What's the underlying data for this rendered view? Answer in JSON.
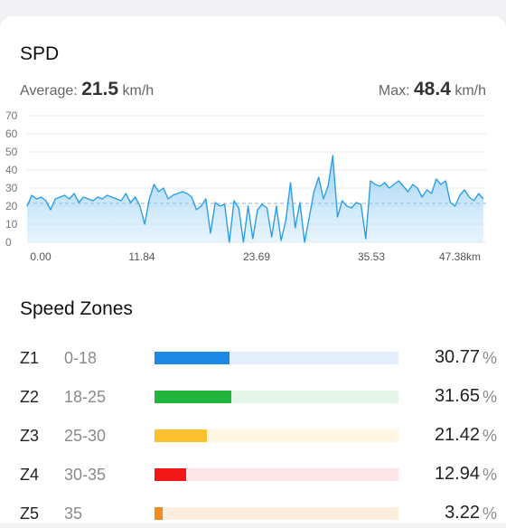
{
  "title": "SPD",
  "average": {
    "label": "Average:",
    "value": "21.5",
    "unit": "km/h"
  },
  "max": {
    "label": "Max:",
    "value": "48.4",
    "unit": "km/h"
  },
  "chart_data": {
    "type": "area",
    "ylim": [
      0,
      70
    ],
    "yticks": [
      "70",
      "60",
      "50",
      "40",
      "30",
      "20",
      "10",
      "0"
    ],
    "xticks": [
      "0.00",
      "11.84",
      "23.69",
      "35.53",
      "47.38km"
    ],
    "xlim": [
      0,
      48.8
    ],
    "average_line": 21.5,
    "color": "#2b9fe6",
    "x": [
      0,
      0.5,
      1,
      1.5,
      2,
      2.5,
      3,
      3.5,
      4,
      4.5,
      5,
      5.5,
      6,
      6.5,
      7,
      7.5,
      8,
      8.5,
      9,
      9.5,
      10,
      10.5,
      11,
      11.5,
      12,
      12.5,
      13,
      13.5,
      14,
      14.5,
      15,
      15.5,
      16,
      16.5,
      17,
      17.5,
      18,
      18.5,
      19,
      19.5,
      20,
      20.5,
      21,
      21.5,
      22,
      22.5,
      23,
      23.5,
      24,
      24.5,
      25,
      25.5,
      26,
      26.5,
      27,
      27.5,
      28,
      28.5,
      29,
      29.5,
      30,
      30.5,
      31,
      31.5,
      32,
      32.5,
      33,
      33.5,
      34,
      34.5,
      35,
      35.5,
      36,
      36.5,
      37,
      37.5,
      38,
      38.5,
      39,
      39.5,
      40,
      40.5,
      41,
      41.5,
      42,
      42.5,
      43,
      43.5,
      44,
      44.5,
      45,
      45.5,
      46,
      46.5,
      47,
      47.5,
      48,
      48.5
    ],
    "y": [
      20,
      26,
      24,
      25,
      23,
      18,
      24,
      25,
      26,
      24,
      27,
      22,
      25,
      24,
      23,
      25,
      24,
      26,
      25,
      24,
      23,
      27,
      22,
      25,
      20,
      10,
      24,
      32,
      28,
      30,
      24,
      26,
      27,
      28,
      27,
      25,
      18,
      20,
      24,
      5,
      22,
      20,
      21,
      0,
      23,
      19,
      0,
      20,
      2,
      18,
      21,
      19,
      3,
      20,
      1,
      12,
      33,
      8,
      22,
      0,
      14,
      28,
      36,
      24,
      31,
      48,
      14,
      23,
      20,
      19,
      22,
      21,
      2,
      34,
      32,
      31,
      33,
      30,
      32,
      34,
      31,
      28,
      32,
      30,
      25,
      29,
      27,
      35,
      32,
      34,
      22,
      20,
      26,
      29,
      25,
      23,
      27,
      24
    ]
  },
  "zones_title": "Speed Zones",
  "zones": [
    {
      "id": "Z1",
      "range": "0-18",
      "percent": "30.77",
      "value": 30.77,
      "color": "#1e88e5",
      "track": "#e3f0fc"
    },
    {
      "id": "Z2",
      "range": "18-25",
      "percent": "31.65",
      "value": 31.65,
      "color": "#22b53d",
      "track": "#e6f5e9"
    },
    {
      "id": "Z3",
      "range": "25-30",
      "percent": "21.42",
      "value": 21.42,
      "color": "#fbc02d",
      "track": "#fef7e2"
    },
    {
      "id": "Z4",
      "range": "30-35",
      "percent": "12.94",
      "value": 12.94,
      "color": "#f21818",
      "track": "#fde4e6"
    },
    {
      "id": "Z5",
      "range": "35",
      "percent": "3.22",
      "value": 3.22,
      "color": "#f08c1e",
      "track": "#fdeedd"
    }
  ],
  "percent_sign": "%"
}
